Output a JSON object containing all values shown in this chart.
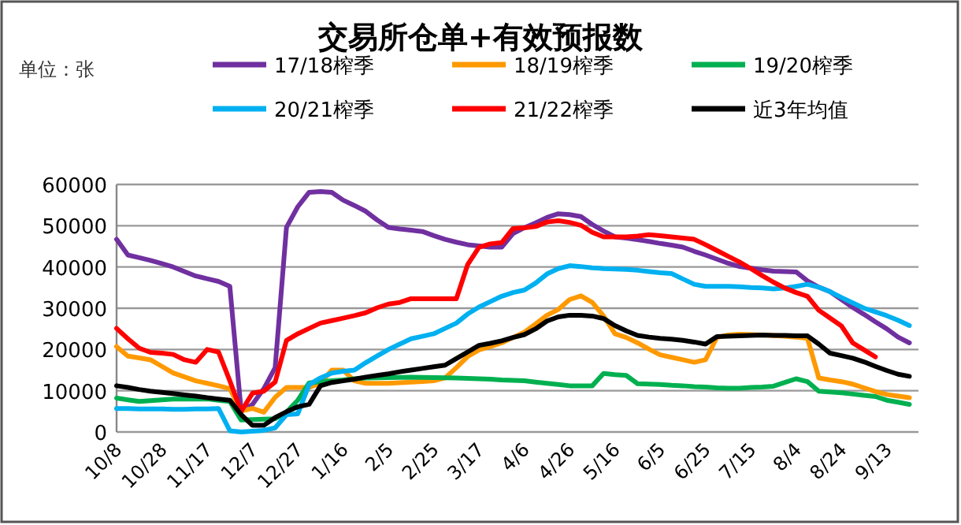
{
  "chart_data": {
    "type": "line",
    "title": "交易所仓单+有效预报数",
    "annotations": [
      "单位：张"
    ],
    "legend": "top",
    "grid": "y",
    "marker": "none",
    "line_style": "solid",
    "ylim": [
      0,
      60000
    ],
    "yticks": [
      0,
      10000,
      20000,
      30000,
      40000,
      50000,
      60000
    ],
    "categories": [
      "10/8",
      null,
      null,
      null,
      "10/28",
      null,
      null,
      null,
      "11/17",
      null,
      null,
      null,
      "12/7",
      null,
      null,
      null,
      "12/27",
      null,
      null,
      null,
      "1/16",
      null,
      null,
      null,
      "2/5",
      null,
      null,
      null,
      "2/25",
      null,
      null,
      null,
      "3/17",
      null,
      null,
      null,
      "4/6",
      null,
      null,
      null,
      "4/26",
      null,
      null,
      null,
      "5/16",
      null,
      null,
      null,
      "6/5",
      null,
      null,
      null,
      "6/25",
      null,
      null,
      null,
      "7/15",
      null,
      null,
      null,
      "8/4",
      null,
      null,
      null,
      "8/24",
      null,
      null,
      null,
      "9/13",
      null,
      null
    ],
    "series": [
      {
        "name": "17/18榨季",
        "color": "#7030a0",
        "values": [
          46700,
          42900,
          42250,
          41600,
          40800,
          40000,
          38900,
          37800,
          37150,
          36500,
          35300,
          5000,
          6700,
          10500,
          15600,
          49600,
          54600,
          58100,
          58300,
          58100,
          56200,
          54900,
          53500,
          51400,
          49600,
          49200,
          48900,
          48600,
          47600,
          46700,
          46000,
          45400,
          45100,
          44800,
          44800,
          48100,
          49500,
          50700,
          52000,
          52900,
          52700,
          52200,
          50300,
          48700,
          47300,
          47000,
          46600,
          46200,
          45700,
          45300,
          44800,
          43800,
          42900,
          41900,
          40900,
          40100,
          39700,
          39300,
          39000,
          38900,
          38800,
          36600,
          35100,
          34000,
          32100,
          30200,
          28500,
          26700,
          25000,
          23000,
          21600
        ]
      },
      {
        "name": "18/19榨季",
        "color": "#ff9900",
        "values": [
          20700,
          18400,
          17950,
          17500,
          15900,
          14300,
          13350,
          12400,
          11800,
          11200,
          10500,
          5100,
          5700,
          4800,
          8400,
          10800,
          10800,
          10800,
          11800,
          15000,
          15000,
          12400,
          11800,
          11800,
          11800,
          11950,
          12100,
          12250,
          12400,
          13100,
          15600,
          18300,
          19900,
          20700,
          21600,
          22900,
          24200,
          26200,
          28300,
          29700,
          32100,
          33000,
          31400,
          28100,
          23800,
          22900,
          21600,
          20100,
          18700,
          18100,
          17500,
          16900,
          17500,
          22900,
          23500,
          23700,
          23600,
          23500,
          23400,
          23200,
          23000,
          22700,
          13100,
          12600,
          12200,
          11600,
          10700,
          9800,
          9100,
          8700,
          8300
        ]
      },
      {
        "name": "19/20榨季",
        "color": "#00b050",
        "values": [
          8200,
          7800,
          7400,
          7600,
          7800,
          8000,
          8000,
          8000,
          8000,
          7700,
          7400,
          2900,
          3000,
          3100,
          3200,
          4800,
          7700,
          11900,
          12200,
          12400,
          12600,
          12900,
          13100,
          13150,
          13200,
          13250,
          13300,
          13250,
          13200,
          13150,
          13100,
          13000,
          12900,
          12800,
          12600,
          12500,
          12400,
          12100,
          11800,
          11500,
          11200,
          11200,
          11200,
          14200,
          13900,
          13700,
          11700,
          11600,
          11500,
          11300,
          11200,
          11000,
          10900,
          10700,
          10600,
          10600,
          10800,
          10900,
          11100,
          12000,
          12900,
          12200,
          9900,
          9700,
          9500,
          9200,
          8900,
          8600,
          7700,
          7200,
          6700
        ]
      },
      {
        "name": "20/21榨季",
        "color": "#00b0f0",
        "values": [
          5700,
          5700,
          5600,
          5600,
          5600,
          5500,
          5500,
          5600,
          5600,
          5700,
          300,
          0,
          200,
          400,
          1000,
          4200,
          4400,
          11500,
          13100,
          14300,
          14700,
          15000,
          16800,
          18400,
          20000,
          21300,
          22600,
          23200,
          23800,
          25100,
          26400,
          28600,
          30300,
          31600,
          32900,
          33800,
          34400,
          36100,
          38300,
          39600,
          40300,
          40100,
          39800,
          39600,
          39500,
          39400,
          39200,
          38900,
          38600,
          38400,
          37100,
          35800,
          35300,
          35300,
          35300,
          35200,
          35000,
          34900,
          34700,
          34900,
          35300,
          35800,
          35100,
          34000,
          32600,
          31300,
          30000,
          29100,
          28200,
          27100,
          25800
        ]
      },
      {
        "name": "21/22榨季",
        "color": "#ff0000",
        "values": [
          25100,
          22600,
          20300,
          19300,
          19100,
          18800,
          17500,
          16900,
          20000,
          19400,
          12400,
          5000,
          9400,
          9900,
          12100,
          22200,
          23800,
          25100,
          26400,
          27000,
          27600,
          28200,
          28900,
          30100,
          31000,
          31400,
          32300,
          32300,
          32300,
          32300,
          32300,
          40600,
          44800,
          45600,
          45900,
          49300,
          49500,
          49800,
          50900,
          51200,
          50800,
          50100,
          48400,
          47300,
          47300,
          47300,
          47500,
          47800,
          47600,
          47300,
          47000,
          46700,
          45400,
          44000,
          42600,
          41200,
          39600,
          37900,
          36300,
          34900,
          33800,
          32900,
          29500,
          27600,
          25700,
          21600,
          19900,
          18200,
          null,
          null,
          null
        ]
      },
      {
        "name": "近3年均值",
        "color": "#000000",
        "values": [
          11200,
          10800,
          10300,
          9900,
          9600,
          9300,
          9000,
          8700,
          8300,
          8000,
          7700,
          4200,
          1600,
          1600,
          3500,
          4900,
          6100,
          6700,
          11200,
          12000,
          12400,
          12800,
          13300,
          13700,
          14100,
          14600,
          15000,
          15400,
          15800,
          16200,
          17800,
          19400,
          21000,
          21500,
          22100,
          22900,
          23600,
          25000,
          26900,
          27900,
          28300,
          28300,
          28100,
          27500,
          25800,
          24500,
          23400,
          23000,
          22700,
          22500,
          22200,
          21800,
          21300,
          23100,
          23200,
          23300,
          23400,
          23500,
          23400,
          23400,
          23300,
          23300,
          21300,
          19100,
          18500,
          17900,
          17000,
          15900,
          14900,
          14000,
          13500
        ]
      }
    ]
  }
}
